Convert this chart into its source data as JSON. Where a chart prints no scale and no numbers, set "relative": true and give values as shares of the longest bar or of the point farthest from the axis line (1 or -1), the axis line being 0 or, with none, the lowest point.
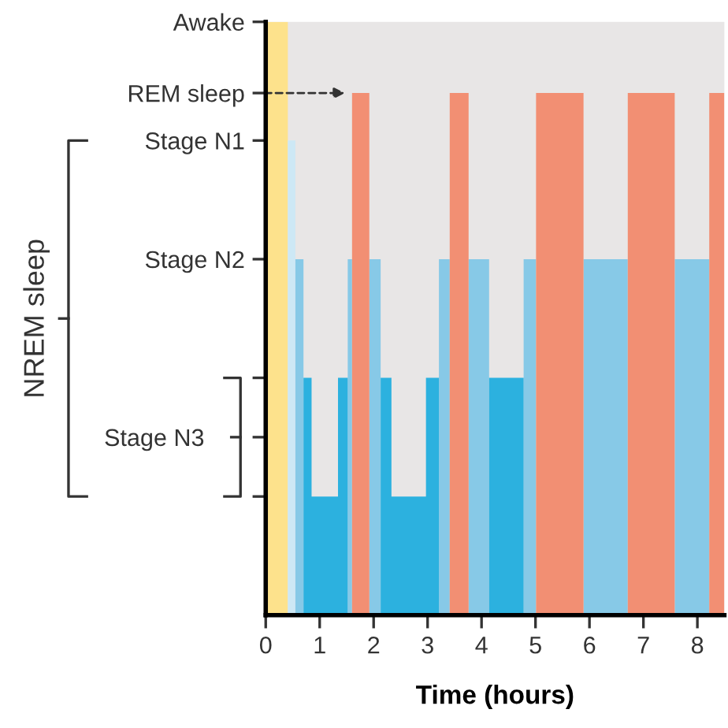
{
  "chart_data": {
    "type": "area",
    "relative": true,
    "xlabel": "Time (hours)",
    "annotations": [
      "Awake",
      "REM sleep",
      "Stage N1",
      "Stage N2",
      "Stage N3",
      "NREM sleep"
    ],
    "xlim": [
      0,
      8.5
    ],
    "xticks": [
      0,
      1,
      2,
      3,
      4,
      5,
      6,
      7,
      8
    ],
    "series": [
      {
        "color": "#fde28c",
        "x": [
          0,
          0,
          0.41,
          0.41
        ],
        "values": [
          0,
          1,
          1,
          0
        ]
      },
      {
        "color": "#cde8f5",
        "x": [
          0.41,
          0.41,
          0.55,
          0.55
        ],
        "values": [
          0,
          0.8,
          0.8,
          0
        ]
      },
      {
        "color": "#87c9e7",
        "x": [
          0.55,
          0.55,
          0.7,
          0.7,
          1.52,
          1.52,
          1.6,
          1.6,
          1.92,
          1.92,
          2.13,
          2.13,
          3.21,
          3.21,
          3.41,
          3.41,
          3.76,
          3.76,
          4.14,
          4.14,
          4.78,
          4.78,
          5.01,
          5.01,
          5.89,
          5.89,
          6.71,
          6.71,
          7.58,
          7.58,
          8.22,
          8.22
        ],
        "values": [
          0,
          0.6,
          0.6,
          0,
          0,
          0.6,
          0.6,
          0,
          0,
          0.6,
          0.6,
          0,
          0,
          0.6,
          0.6,
          0,
          0,
          0.6,
          0.6,
          0,
          0,
          0.6,
          0.6,
          0,
          0,
          0.6,
          0.6,
          0,
          0,
          0.6,
          0.6,
          0
        ]
      },
      {
        "color": "#2cb1df",
        "x": [
          0.7,
          0.7,
          0.85,
          0.85,
          1.34,
          1.34,
          1.52,
          1.52,
          2.13,
          2.13,
          2.33,
          2.33,
          2.97,
          2.97,
          3.21,
          3.21,
          4.14,
          4.14,
          4.78,
          4.78
        ],
        "values": [
          0,
          0.4,
          0.4,
          0.2,
          0.2,
          0.4,
          0.4,
          0,
          0,
          0.4,
          0.4,
          0.2,
          0.2,
          0.4,
          0.4,
          0,
          0,
          0.4,
          0.4,
          0
        ]
      },
      {
        "color": "#f28f73",
        "x": [
          1.6,
          1.6,
          1.92,
          1.92,
          3.41,
          3.41,
          3.76,
          3.76,
          5.01,
          5.01,
          5.89,
          5.89,
          6.71,
          6.71,
          7.58,
          7.58,
          8.22,
          8.22,
          8.5,
          8.5
        ],
        "values": [
          0,
          0.88,
          0.88,
          0,
          0,
          0.88,
          0.88,
          0,
          0,
          0.88,
          0.88,
          0,
          0,
          0.88,
          0.88,
          0,
          0,
          0.88,
          0.88,
          0
        ]
      }
    ]
  }
}
